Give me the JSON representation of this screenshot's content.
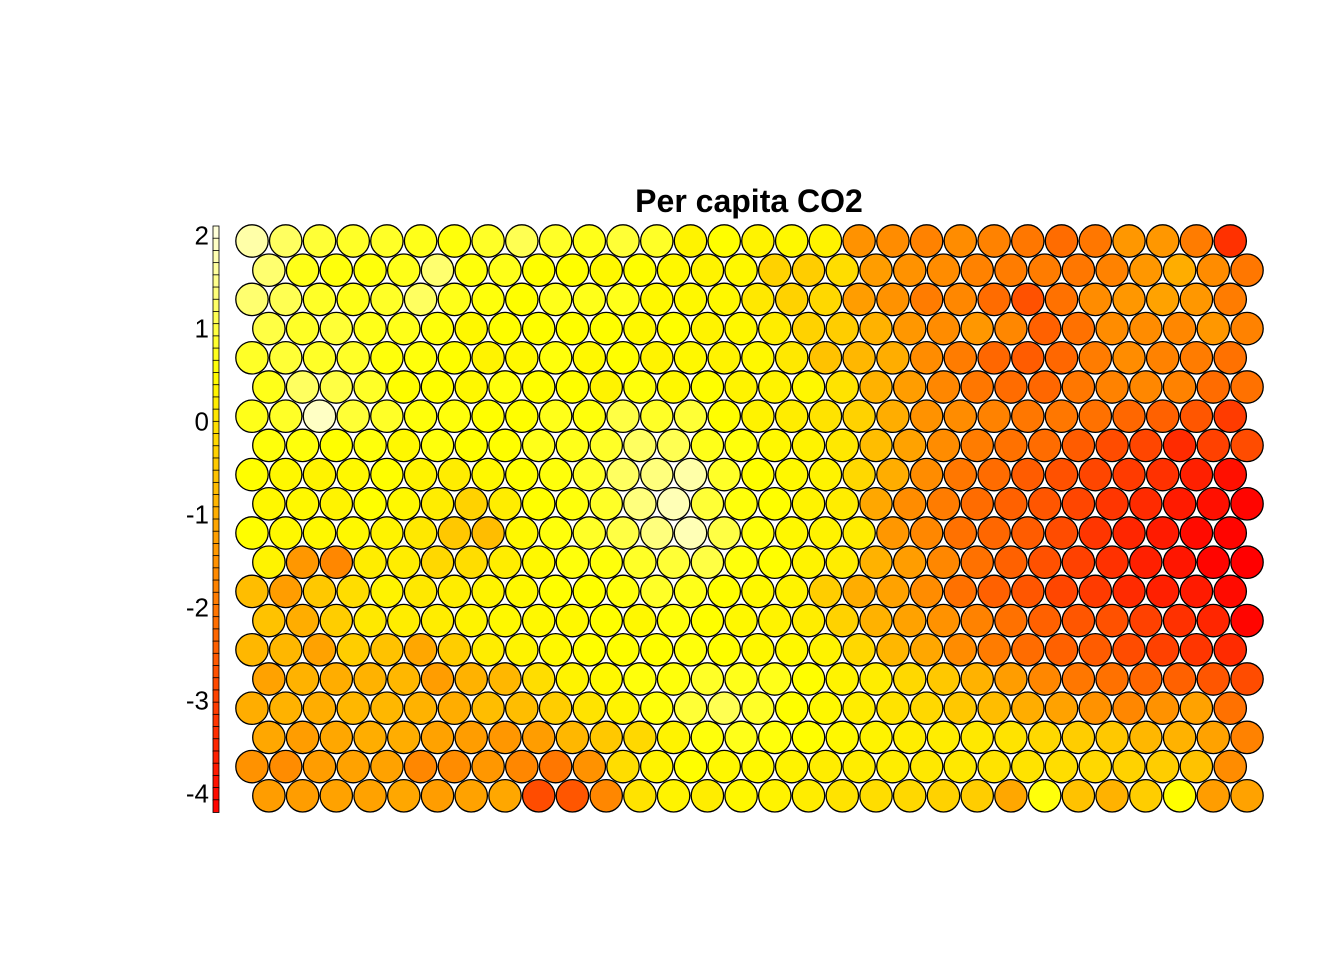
{
  "chart_data": {
    "type": "heatmap",
    "subtype": "som-hexagonal",
    "title": "Per capita CO2",
    "xlabel": "",
    "ylabel": "",
    "grid": {
      "cols": 30,
      "rows": 20,
      "layout": "hexagonal"
    },
    "colorbar": {
      "range": [
        -4.2,
        2.1
      ],
      "ticks": [
        2,
        1,
        0,
        -1,
        -2,
        -3,
        -4
      ],
      "tick_labels": [
        "2",
        "1",
        "0",
        "-1",
        "-2",
        "-3",
        "-4"
      ],
      "palette": "heat (red at low, white at high)",
      "placement": "left"
    },
    "values": [
      [
        1.7,
        1.2,
        0.9,
        0.8,
        0.8,
        0.7,
        0.6,
        0.8,
        1.1,
        0.8,
        0.7,
        0.9,
        0.8,
        0.3,
        0.5,
        0.3,
        0.4,
        0.3,
        -1.5,
        -1.6,
        -1.8,
        -1.6,
        -1.8,
        -2.0,
        -2.2,
        -2.0,
        -1.4,
        -1.4,
        -1.9,
        -3.3
      ],
      [
        1.3,
        0.7,
        0.6,
        0.6,
        0.7,
        1.3,
        0.6,
        0.7,
        0.5,
        0.5,
        0.4,
        0.5,
        0.4,
        0.3,
        0.4,
        -0.3,
        -0.4,
        -0.1,
        -1.3,
        -1.5,
        -1.6,
        -1.8,
        -1.9,
        -1.9,
        -2.0,
        -1.8,
        -1.4,
        -1.0,
        -1.6,
        -2.0
      ],
      [
        1.3,
        1.1,
        0.8,
        0.7,
        0.8,
        1.2,
        0.7,
        0.6,
        0.5,
        0.7,
        0.7,
        0.7,
        0.4,
        0.4,
        0.4,
        0.1,
        -0.3,
        -0.2,
        -1.3,
        -1.5,
        -1.9,
        -1.7,
        -2.2,
        -2.7,
        -2.1,
        -1.6,
        -1.4,
        -1.2,
        -1.4,
        -1.9
      ],
      [
        1.0,
        0.8,
        0.9,
        0.7,
        0.7,
        0.6,
        0.4,
        0.5,
        0.5,
        0.5,
        0.5,
        0.4,
        0.5,
        0.3,
        0.4,
        0.2,
        -0.3,
        -0.4,
        -0.9,
        -1.4,
        -1.6,
        -1.4,
        -1.7,
        -2.4,
        -2.1,
        -1.6,
        -1.6,
        -1.7,
        -1.4,
        -1.8
      ],
      [
        0.8,
        0.9,
        0.8,
        0.8,
        0.6,
        0.6,
        0.5,
        0.3,
        0.4,
        0.6,
        0.4,
        0.5,
        0.3,
        0.4,
        0.3,
        0.4,
        0.1,
        -0.6,
        -0.8,
        -1.0,
        -1.6,
        -1.9,
        -2.3,
        -2.5,
        -2.3,
        -1.9,
        -1.6,
        -1.8,
        -1.9,
        -2.1
      ],
      [
        0.7,
        1.2,
        1.0,
        0.8,
        0.5,
        0.5,
        0.4,
        0.6,
        0.5,
        0.5,
        0.3,
        0.6,
        0.4,
        0.5,
        0.3,
        0.3,
        0.4,
        0.0,
        -0.9,
        -1.3,
        -1.7,
        -2.0,
        -2.2,
        -2.3,
        -2.0,
        -1.8,
        -1.7,
        -1.8,
        -2.2,
        -2.1
      ],
      [
        0.7,
        0.8,
        1.9,
        0.9,
        0.8,
        0.6,
        0.6,
        0.5,
        0.5,
        0.7,
        0.6,
        1.0,
        0.8,
        0.9,
        0.5,
        0.3,
        0.2,
        0.0,
        -0.3,
        -1.0,
        -1.5,
        -1.6,
        -1.8,
        -2.0,
        -2.0,
        -2.1,
        -2.3,
        -2.4,
        -2.6,
        -3.1
      ],
      [
        0.6,
        0.6,
        0.5,
        0.6,
        0.4,
        0.6,
        0.5,
        0.5,
        0.7,
        0.7,
        0.8,
        1.2,
        1.1,
        0.7,
        0.6,
        0.4,
        0.3,
        0.1,
        -0.7,
        -1.2,
        -1.6,
        -1.9,
        -2.1,
        -2.2,
        -2.5,
        -2.8,
        -2.9,
        -3.4,
        -3.0,
        -2.8
      ],
      [
        0.5,
        0.4,
        0.3,
        0.4,
        0.5,
        0.3,
        0.2,
        0.4,
        0.5,
        0.6,
        0.8,
        1.2,
        1.4,
        1.7,
        0.8,
        0.5,
        0.4,
        0.3,
        -0.2,
        -1.0,
        -1.6,
        -2.0,
        -2.2,
        -2.5,
        -2.7,
        -2.9,
        -3.1,
        -3.3,
        -3.6,
        -3.9
      ],
      [
        0.4,
        0.4,
        0.3,
        0.5,
        0.4,
        0.2,
        -0.3,
        0.2,
        0.5,
        0.6,
        0.8,
        1.4,
        1.8,
        0.9,
        0.6,
        0.5,
        0.3,
        0.2,
        -1.1,
        -1.6,
        -1.9,
        -2.2,
        -2.4,
        -2.6,
        -2.9,
        -3.2,
        -3.4,
        -3.7,
        -3.9,
        -4.1
      ],
      [
        0.5,
        0.4,
        0.4,
        0.4,
        0.3,
        0.1,
        -0.5,
        -0.7,
        0.4,
        0.6,
        0.8,
        1.0,
        1.4,
        1.8,
        1.0,
        0.6,
        0.4,
        0.3,
        0.2,
        -1.4,
        -1.7,
        -2.1,
        -2.3,
        -2.5,
        -2.8,
        -3.2,
        -3.5,
        -3.7,
        -4.0,
        -4.1
      ],
      [
        0.3,
        -1.4,
        -1.7,
        0.2,
        0.2,
        -0.2,
        -0.1,
        0.2,
        0.4,
        0.6,
        0.6,
        0.8,
        0.9,
        1.0,
        0.6,
        0.5,
        0.3,
        0.2,
        -0.9,
        -1.3,
        -1.7,
        -2.1,
        -2.4,
        -2.7,
        -3.0,
        -3.3,
        -3.6,
        -3.8,
        -4.1,
        -4.2
      ],
      [
        -0.7,
        -1.3,
        -0.5,
        -0.1,
        0.3,
        0.1,
        0.2,
        0.3,
        0.4,
        0.5,
        0.5,
        0.6,
        0.8,
        0.7,
        0.5,
        0.4,
        0.3,
        -0.4,
        -1.0,
        -1.2,
        -1.6,
        -2.1,
        -2.4,
        -2.6,
        -2.9,
        -3.1,
        -3.4,
        -3.6,
        -3.7,
        -4.0
      ],
      [
        -0.6,
        -1.0,
        -0.4,
        0.1,
        0.2,
        0.2,
        0.3,
        0.4,
        0.4,
        0.4,
        0.5,
        0.4,
        0.6,
        0.5,
        0.4,
        0.3,
        0.2,
        -0.3,
        -0.9,
        -1.2,
        -1.5,
        -1.8,
        -2.1,
        -2.4,
        -2.6,
        -2.7,
        -3.0,
        -3.3,
        -3.5,
        -4.1
      ],
      [
        -0.8,
        -0.8,
        -1.2,
        -0.4,
        -0.6,
        -1.1,
        -0.4,
        0.2,
        0.3,
        0.4,
        0.5,
        0.5,
        0.5,
        0.6,
        0.5,
        0.4,
        0.4,
        0.3,
        -0.2,
        -0.8,
        -1.1,
        -1.6,
        -1.9,
        -2.2,
        -2.4,
        -2.5,
        -2.8,
        -3.0,
        -3.2,
        -3.4
      ],
      [
        -1.2,
        -0.9,
        -1.0,
        -0.9,
        -0.8,
        -1.3,
        -0.9,
        -0.8,
        -0.1,
        0.3,
        0.4,
        0.6,
        0.6,
        0.8,
        0.7,
        0.7,
        0.5,
        0.3,
        0.2,
        -0.2,
        -0.5,
        -0.9,
        -1.3,
        -1.7,
        -2.0,
        -2.1,
        -2.3,
        -2.4,
        -2.6,
        -2.8
      ],
      [
        -1.0,
        -0.9,
        -1.0,
        -0.8,
        -0.8,
        -0.9,
        -1.0,
        -0.7,
        -0.7,
        -0.4,
        0.0,
        0.3,
        0.6,
        0.9,
        1.1,
        0.8,
        0.5,
        0.4,
        0.2,
        0.0,
        -0.2,
        -0.5,
        -0.7,
        -1.0,
        -1.2,
        -1.5,
        -1.7,
        -1.5,
        -1.2,
        -2.1
      ],
      [
        -1.1,
        -1.3,
        -1.1,
        -1.0,
        -1.0,
        -1.2,
        -1.3,
        -1.4,
        -1.3,
        -0.8,
        -0.5,
        -0.2,
        0.3,
        0.6,
        0.7,
        0.6,
        0.5,
        0.4,
        0.3,
        0.2,
        0.2,
        0.1,
        0.0,
        -0.2,
        -0.4,
        -0.5,
        -0.8,
        -0.9,
        -1.2,
        -1.8
      ],
      [
        -1.5,
        -1.6,
        -1.3,
        -1.2,
        -1.2,
        -1.7,
        -1.6,
        -1.4,
        -1.7,
        -2.0,
        -1.5,
        -0.1,
        0.3,
        0.5,
        0.4,
        0.4,
        0.3,
        0.2,
        0.2,
        0.2,
        0.1,
        0.1,
        0.0,
        0.0,
        -0.1,
        -0.2,
        -0.3,
        -0.4,
        -0.6,
        -1.6
      ],
      [
        -1.3,
        -1.3,
        -1.2,
        -1.2,
        -1.1,
        -1.3,
        -1.2,
        -1.1,
        -2.8,
        -2.6,
        -1.7,
        0.0,
        0.3,
        0.2,
        0.4,
        0.3,
        0.2,
        0.0,
        -0.1,
        -0.2,
        -0.3,
        -0.4,
        -1.1,
        0.6,
        -0.6,
        -0.9,
        -0.4,
        0.5,
        -1.3,
        -1.2
      ]
    ]
  }
}
